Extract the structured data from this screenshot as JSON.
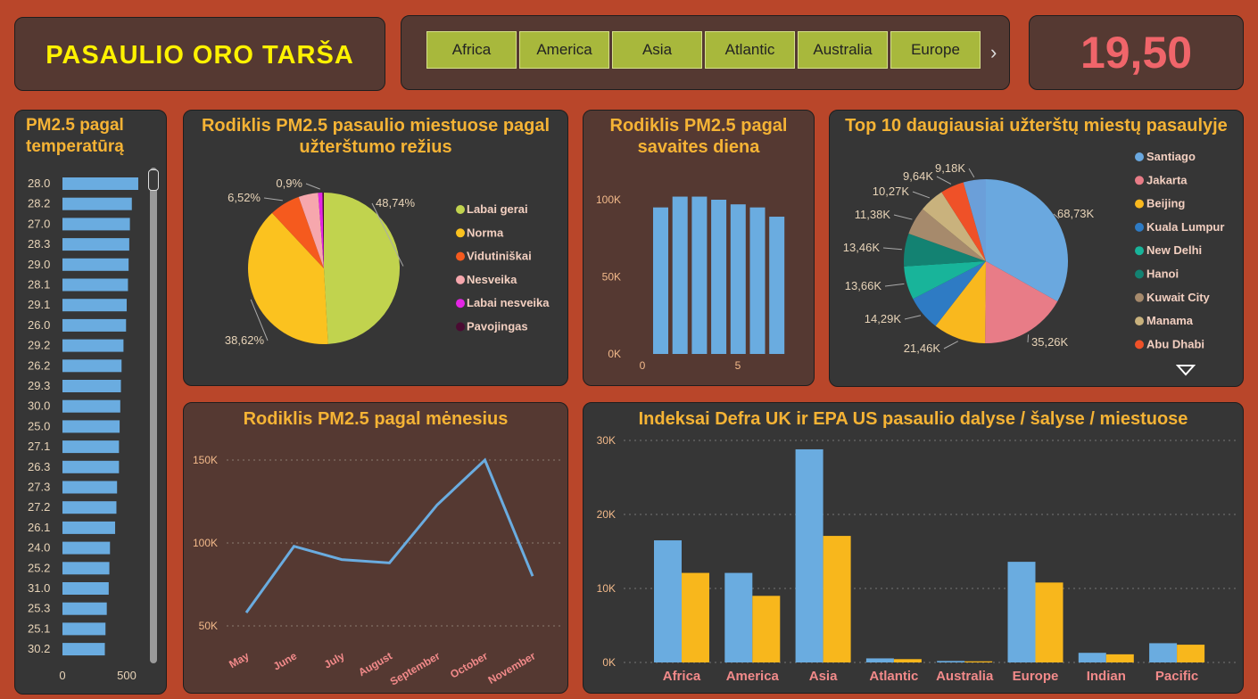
{
  "title": "PASAULIO ORO TARŠA",
  "tabs": [
    "Africa",
    "America",
    "Asia",
    "Atlantic",
    "Australia",
    "Europe"
  ],
  "kpi": "19,50",
  "colors": {
    "bg": "#b9462a",
    "panel_dark": "#363636",
    "panel_brown": "#553932",
    "title": "#f5b335",
    "kpi": "#f0656a",
    "bar_blue": "#6aace0",
    "bar_yellow": "#f8b71c"
  },
  "temp_panel": {
    "title": "PM2.5 pagal temperatūrą",
    "xticks": [
      "0",
      "500"
    ],
    "chart_data": {
      "type": "bar",
      "orientation": "horizontal",
      "categories": [
        "28.0",
        "28.2",
        "27.0",
        "28.3",
        "29.0",
        "28.1",
        "29.1",
        "26.0",
        "29.2",
        "26.2",
        "29.3",
        "30.0",
        "25.0",
        "27.1",
        "26.3",
        "27.3",
        "27.2",
        "26.1",
        "24.0",
        "25.2",
        "31.0",
        "25.3",
        "25.1",
        "30.2"
      ],
      "values": [
        590,
        540,
        525,
        520,
        515,
        510,
        500,
        495,
        475,
        460,
        455,
        450,
        445,
        440,
        440,
        425,
        420,
        410,
        370,
        365,
        360,
        345,
        335,
        330
      ],
      "xlim": [
        0,
        600
      ]
    }
  },
  "pie1": {
    "title": "Rodiklis PM2.5 pasaulio miestuose pagal užterštumo režius",
    "chart_data": {
      "type": "pie",
      "slices": [
        {
          "name": "Labai gerai",
          "value": 48.74,
          "label": "48,74%",
          "color": "#c1d34e"
        },
        {
          "name": "Norma",
          "value": 38.62,
          "label": "38,62%",
          "color": "#fbc21f"
        },
        {
          "name": "Vidutiniškai",
          "value": 6.52,
          "label": "6,52%",
          "color": "#f55a1e"
        },
        {
          "name": "Nesveika",
          "value": 4.15,
          "label": "",
          "color": "#f6a7ad"
        },
        {
          "name": "Labai nesveika",
          "value": 0.9,
          "label": "0,9%",
          "color": "#e425e4"
        },
        {
          "name": "Pavojingas",
          "value": 0.3,
          "label": "",
          "color": "#4a0b32"
        }
      ]
    }
  },
  "weekday": {
    "title": "Rodiklis PM2.5 pagal savaites diena",
    "chart_data": {
      "type": "bar",
      "x": [
        1,
        2,
        3,
        4,
        5,
        6,
        7
      ],
      "values": [
        95000,
        102000,
        102000,
        100000,
        97000,
        95000,
        89000
      ],
      "ylim": [
        0,
        120000
      ],
      "yticks": [
        "0K",
        "50K",
        "100K"
      ],
      "xticks": [
        "0",
        "5"
      ]
    }
  },
  "top10": {
    "title": "Top 10 daugiausiai užterštų miestų pasaulyje",
    "chart_data": {
      "type": "pie",
      "slices": [
        {
          "name": "Santiago",
          "value": 68.73,
          "label": "68,73K",
          "color": "#6aa8df"
        },
        {
          "name": "Jakarta",
          "value": 35.26,
          "label": "35,26K",
          "color": "#e87c87"
        },
        {
          "name": "Beijing",
          "value": 21.46,
          "label": "21,46K",
          "color": "#f9b81e"
        },
        {
          "name": "Kuala Lumpur",
          "value": 14.29,
          "label": "14,29K",
          "color": "#2e7bc4"
        },
        {
          "name": "New Delhi",
          "value": 13.66,
          "label": "13,66K",
          "color": "#18b49a"
        },
        {
          "name": "Hanoi",
          "value": 13.46,
          "label": "13,46K",
          "color": "#138272"
        },
        {
          "name": "Kuwait City",
          "value": 11.38,
          "label": "11,38K",
          "color": "#a68a6c"
        },
        {
          "name": "Manama",
          "value": 10.27,
          "label": "10,27K",
          "color": "#c9b27d"
        },
        {
          "name": "Abu Dhabi",
          "value": 9.64,
          "label": "9,64K",
          "color": "#ef5128"
        },
        {
          "name": "",
          "value": 9.18,
          "label": "9,18K",
          "color": "#6b9fd9"
        }
      ],
      "legend_shown": [
        "Santiago",
        "Jakarta",
        "Beijing",
        "Kuala Lumpur",
        "New Delhi",
        "Hanoi",
        "Kuwait City",
        "Manama",
        "Abu Dhabi"
      ]
    }
  },
  "months": {
    "title": "Rodiklis PM2.5 pagal mėnesius",
    "chart_data": {
      "type": "line",
      "categories": [
        "May",
        "June",
        "July",
        "August",
        "September",
        "October",
        "November"
      ],
      "values": [
        58000,
        98000,
        90000,
        88000,
        123000,
        150000,
        80000
      ],
      "ylim": [
        40000,
        160000
      ],
      "yticks": [
        {
          "v": 50000,
          "label": "50K"
        },
        {
          "v": 100000,
          "label": "100K"
        },
        {
          "v": 150000,
          "label": "150K"
        }
      ]
    }
  },
  "defra": {
    "title": "Indeksai Defra UK ir EPA US pasaulio dalyse / šalyse / miestuose",
    "chart_data": {
      "type": "bar",
      "categories": [
        "Africa",
        "America",
        "Asia",
        "Atlantic",
        "Australia",
        "Europe",
        "Indian",
        "Pacific"
      ],
      "series": [
        {
          "values": [
            16500,
            12100,
            28800,
            550,
            200,
            13600,
            1300,
            2600
          ],
          "color": "#6aace0"
        },
        {
          "values": [
            12100,
            9000,
            17100,
            450,
            150,
            10800,
            1100,
            2400
          ],
          "color": "#f8b71c"
        }
      ],
      "ylim": [
        0,
        30000
      ],
      "yticks": [
        {
          "v": 0,
          "label": "0K"
        },
        {
          "v": 10000,
          "label": "10K"
        },
        {
          "v": 20000,
          "label": "20K"
        },
        {
          "v": 30000,
          "label": "30K"
        }
      ]
    }
  }
}
